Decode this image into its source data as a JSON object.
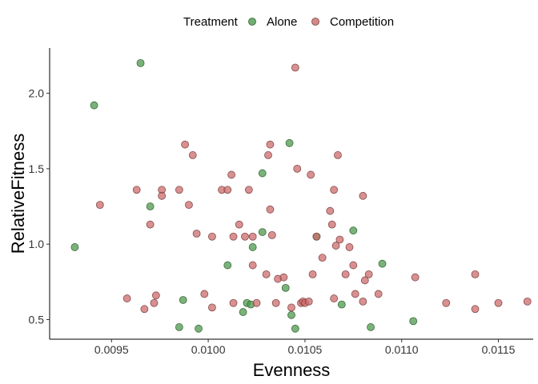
{
  "chart_data": {
    "type": "scatter",
    "title": "",
    "xlabel": "Evenness",
    "ylabel": "RelativeFitness",
    "xlim": [
      0.00918,
      0.01168
    ],
    "ylim": [
      0.37,
      2.3
    ],
    "x_ticks": [
      0.0095,
      0.01,
      0.0105,
      0.011,
      0.0115
    ],
    "x_tick_labels": [
      "0.0095",
      "0.0100",
      "0.0105",
      "0.0110",
      "0.0115"
    ],
    "y_ticks": [
      0.5,
      1.0,
      1.5,
      2.0
    ],
    "y_tick_labels": [
      "0.5",
      "1.0",
      "1.5",
      "2.0"
    ],
    "grid": false,
    "legend": {
      "title": "Treatment",
      "placement": "top"
    },
    "series": [
      {
        "name": "Alone",
        "color": "#4d9a4d",
        "points": [
          [
            0.00931,
            0.98
          ],
          [
            0.00941,
            1.92
          ],
          [
            0.00965,
            2.2
          ],
          [
            0.0097,
            1.25
          ],
          [
            0.00985,
            0.45
          ],
          [
            0.00987,
            0.63
          ],
          [
            0.00995,
            0.44
          ],
          [
            0.0101,
            0.86
          ],
          [
            0.01018,
            0.55
          ],
          [
            0.0102,
            0.61
          ],
          [
            0.01022,
            0.6
          ],
          [
            0.01023,
            0.98
          ],
          [
            0.01028,
            1.08
          ],
          [
            0.01028,
            1.47
          ],
          [
            0.0104,
            0.71
          ],
          [
            0.01042,
            1.67
          ],
          [
            0.01043,
            0.53
          ],
          [
            0.01045,
            0.44
          ],
          [
            0.01056,
            1.05
          ],
          [
            0.01069,
            0.6
          ],
          [
            0.01075,
            1.09
          ],
          [
            0.01084,
            0.45
          ],
          [
            0.0109,
            0.87
          ],
          [
            0.01106,
            0.49
          ]
        ]
      },
      {
        "name": "Competition",
        "color": "#cc6b6b",
        "points": [
          [
            0.00944,
            1.26
          ],
          [
            0.00958,
            0.64
          ],
          [
            0.00963,
            1.36
          ],
          [
            0.00967,
            0.57
          ],
          [
            0.0097,
            1.13
          ],
          [
            0.00972,
            0.61
          ],
          [
            0.00973,
            0.66
          ],
          [
            0.00976,
            1.36
          ],
          [
            0.00976,
            1.32
          ],
          [
            0.00985,
            1.36
          ],
          [
            0.00988,
            1.66
          ],
          [
            0.0099,
            1.26
          ],
          [
            0.00992,
            1.59
          ],
          [
            0.00994,
            1.07
          ],
          [
            0.00998,
            0.67
          ],
          [
            0.01002,
            0.58
          ],
          [
            0.01002,
            1.05
          ],
          [
            0.01007,
            1.36
          ],
          [
            0.0101,
            1.36
          ],
          [
            0.01012,
            1.46
          ],
          [
            0.01013,
            0.61
          ],
          [
            0.01013,
            1.05
          ],
          [
            0.01016,
            1.13
          ],
          [
            0.01019,
            1.05
          ],
          [
            0.01021,
            1.36
          ],
          [
            0.01023,
            1.05
          ],
          [
            0.01023,
            0.86
          ],
          [
            0.01025,
            0.61
          ],
          [
            0.0103,
            0.8
          ],
          [
            0.01031,
            1.59
          ],
          [
            0.01032,
            1.66
          ],
          [
            0.01032,
            1.23
          ],
          [
            0.01033,
            1.06
          ],
          [
            0.01035,
            0.61
          ],
          [
            0.01036,
            0.77
          ],
          [
            0.01039,
            0.78
          ],
          [
            0.01043,
            0.58
          ],
          [
            0.01045,
            2.17
          ],
          [
            0.01046,
            1.5
          ],
          [
            0.01048,
            0.61
          ],
          [
            0.01049,
            0.62
          ],
          [
            0.0105,
            0.61
          ],
          [
            0.01052,
            0.62
          ],
          [
            0.01053,
            1.46
          ],
          [
            0.01054,
            0.8
          ],
          [
            0.01056,
            1.05
          ],
          [
            0.01059,
            0.91
          ],
          [
            0.01063,
            1.22
          ],
          [
            0.01064,
            1.13
          ],
          [
            0.01065,
            0.64
          ],
          [
            0.01065,
            1.36
          ],
          [
            0.01066,
            0.99
          ],
          [
            0.01067,
            1.59
          ],
          [
            0.01068,
            1.03
          ],
          [
            0.01071,
            0.8
          ],
          [
            0.01073,
            0.98
          ],
          [
            0.01075,
            0.86
          ],
          [
            0.01076,
            0.67
          ],
          [
            0.0108,
            0.62
          ],
          [
            0.0108,
            1.32
          ],
          [
            0.01081,
            0.76
          ],
          [
            0.01083,
            0.8
          ],
          [
            0.01088,
            0.67
          ],
          [
            0.01107,
            0.78
          ],
          [
            0.01123,
            0.61
          ],
          [
            0.01138,
            0.57
          ],
          [
            0.01138,
            0.8
          ],
          [
            0.0115,
            0.61
          ],
          [
            0.01165,
            0.62
          ]
        ]
      }
    ]
  }
}
